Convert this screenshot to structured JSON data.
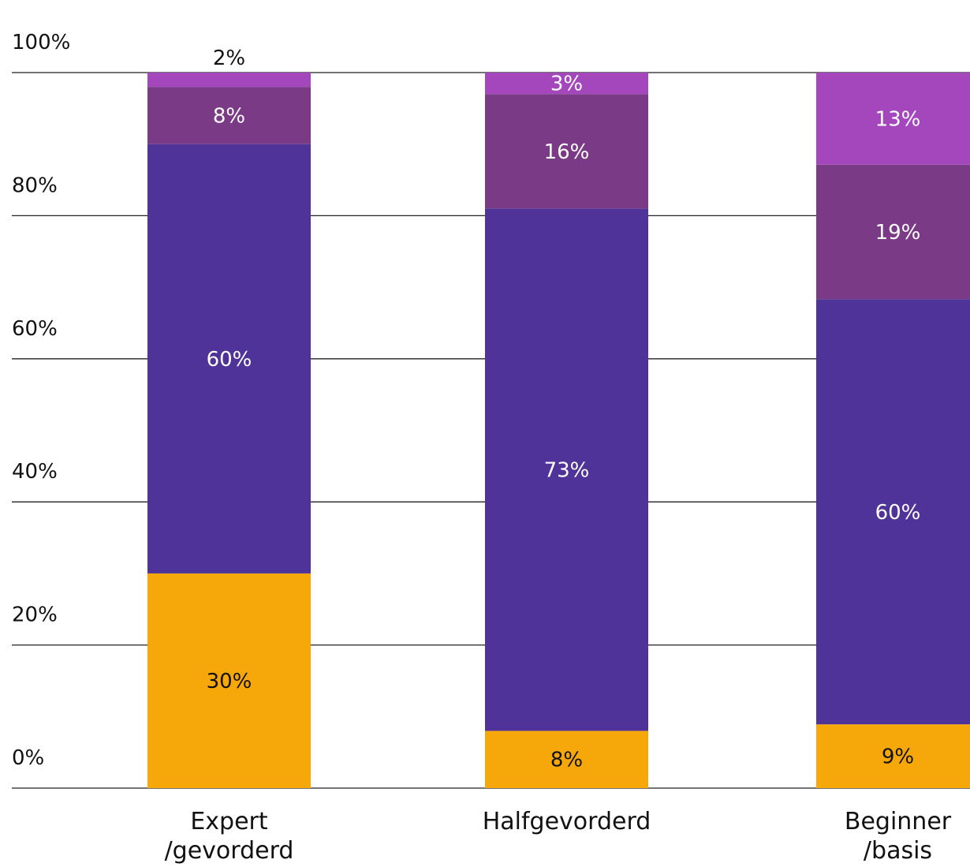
{
  "chart_data": {
    "type": "bar",
    "stacked": true,
    "categories": [
      [
        "Expert",
        "/gevorderd"
      ],
      [
        "Halfgevorderd"
      ],
      [
        "Beginner",
        "/basis"
      ]
    ],
    "series": [
      {
        "color": "#F6A80B",
        "label_color": "#111111",
        "values": [
          30,
          8,
          9
        ]
      },
      {
        "color": "#4F3398",
        "label_color": "#ffffff",
        "values": [
          60,
          73,
          60
        ]
      },
      {
        "color": "#7B3A86",
        "label_color": "#ffffff",
        "values": [
          8,
          16,
          19
        ]
      },
      {
        "color": "#A447BD",
        "label_color": "#ffffff",
        "values": [
          2,
          3,
          13
        ]
      }
    ],
    "data_labels": [
      [
        "30%",
        "60%",
        "8%",
        "2%"
      ],
      [
        "8%",
        "73%",
        "16%",
        "3%"
      ],
      [
        "9%",
        "60%",
        "19%",
        "13%"
      ]
    ],
    "y_ticks": [
      0,
      20,
      40,
      60,
      80,
      100
    ],
    "y_tick_labels": [
      "0%",
      "20%",
      "40%",
      "60%",
      "80%",
      "100%"
    ],
    "ylim": [
      0,
      100
    ],
    "grid": true,
    "legend": false,
    "title": "",
    "xlabel": "",
    "ylabel": ""
  }
}
